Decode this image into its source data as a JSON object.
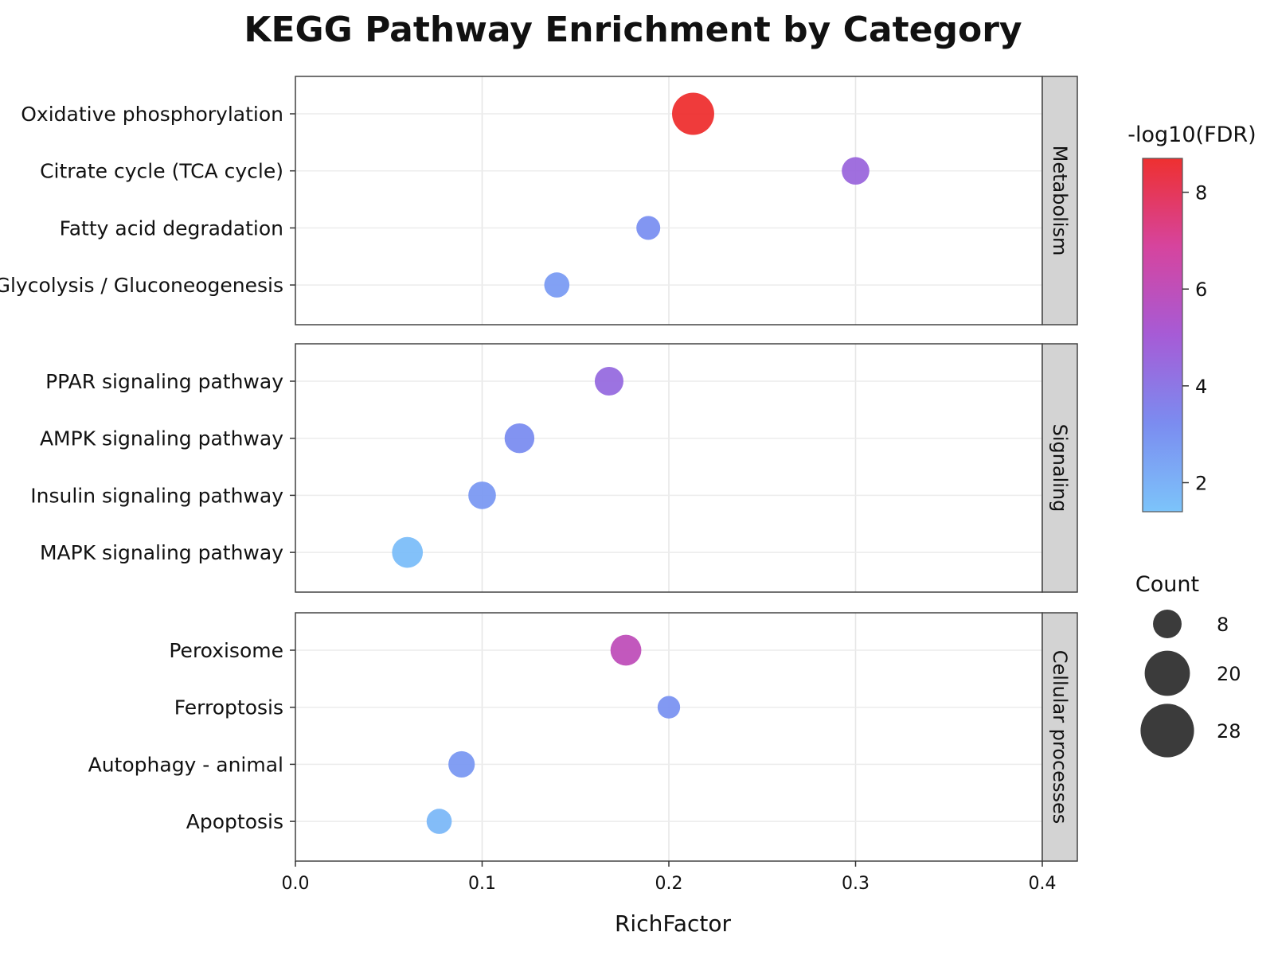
{
  "chart_data": {
    "type": "scatter",
    "title": "KEGG Pathway Enrichment by Category",
    "xlabel": "RichFactor",
    "xlim": [
      0,
      0.4
    ],
    "xticks": [
      "0.0",
      "0.1",
      "0.2",
      "0.3",
      "0.4"
    ],
    "grid": true,
    "panels": [
      {
        "name": "Metabolism",
        "pathways": [
          {
            "label": "Oxidative phosphorylation",
            "richfactor": 0.213,
            "count": 28,
            "neglog10fdr": 8.7
          },
          {
            "label": "Citrate cycle (TCA cycle)",
            "richfactor": 0.3,
            "count": 12,
            "neglog10fdr": 4.6
          },
          {
            "label": "Fatty acid degradation",
            "richfactor": 0.189,
            "count": 9,
            "neglog10fdr": 3.1
          },
          {
            "label": "Glycolysis / Gluconeogenesis",
            "richfactor": 0.14,
            "count": 10,
            "neglog10fdr": 2.7
          }
        ]
      },
      {
        "name": "Signaling",
        "pathways": [
          {
            "label": "PPAR signaling pathway",
            "richfactor": 0.168,
            "count": 13,
            "neglog10fdr": 4.4
          },
          {
            "label": "AMPK signaling pathway",
            "richfactor": 0.12,
            "count": 14,
            "neglog10fdr": 3.2
          },
          {
            "label": "Insulin signaling pathway",
            "richfactor": 0.1,
            "count": 12,
            "neglog10fdr": 2.8
          },
          {
            "label": "MAPK signaling pathway",
            "richfactor": 0.06,
            "count": 15,
            "neglog10fdr": 1.6
          }
        ]
      },
      {
        "name": "Cellular processes",
        "pathways": [
          {
            "label": "Peroxisome",
            "richfactor": 0.177,
            "count": 15,
            "neglog10fdr": 6.0
          },
          {
            "label": "Ferroptosis",
            "richfactor": 0.2,
            "count": 8,
            "neglog10fdr": 3.0
          },
          {
            "label": "Autophagy - animal",
            "richfactor": 0.089,
            "count": 11,
            "neglog10fdr": 2.8
          },
          {
            "label": "Apoptosis",
            "richfactor": 0.077,
            "count": 10,
            "neglog10fdr": 1.8
          }
        ]
      }
    ],
    "color_legend": {
      "title": "-log10(FDR)",
      "range": [
        1.4,
        8.7
      ],
      "ticks": [
        2,
        4,
        6,
        8
      ],
      "colors": [
        "#7cc4fa",
        "#7b8cf0",
        "#a65bd6",
        "#d6449e",
        "#ee3030"
      ]
    },
    "size_legend": {
      "title": "Count",
      "values": [
        8,
        20,
        28
      ]
    }
  }
}
